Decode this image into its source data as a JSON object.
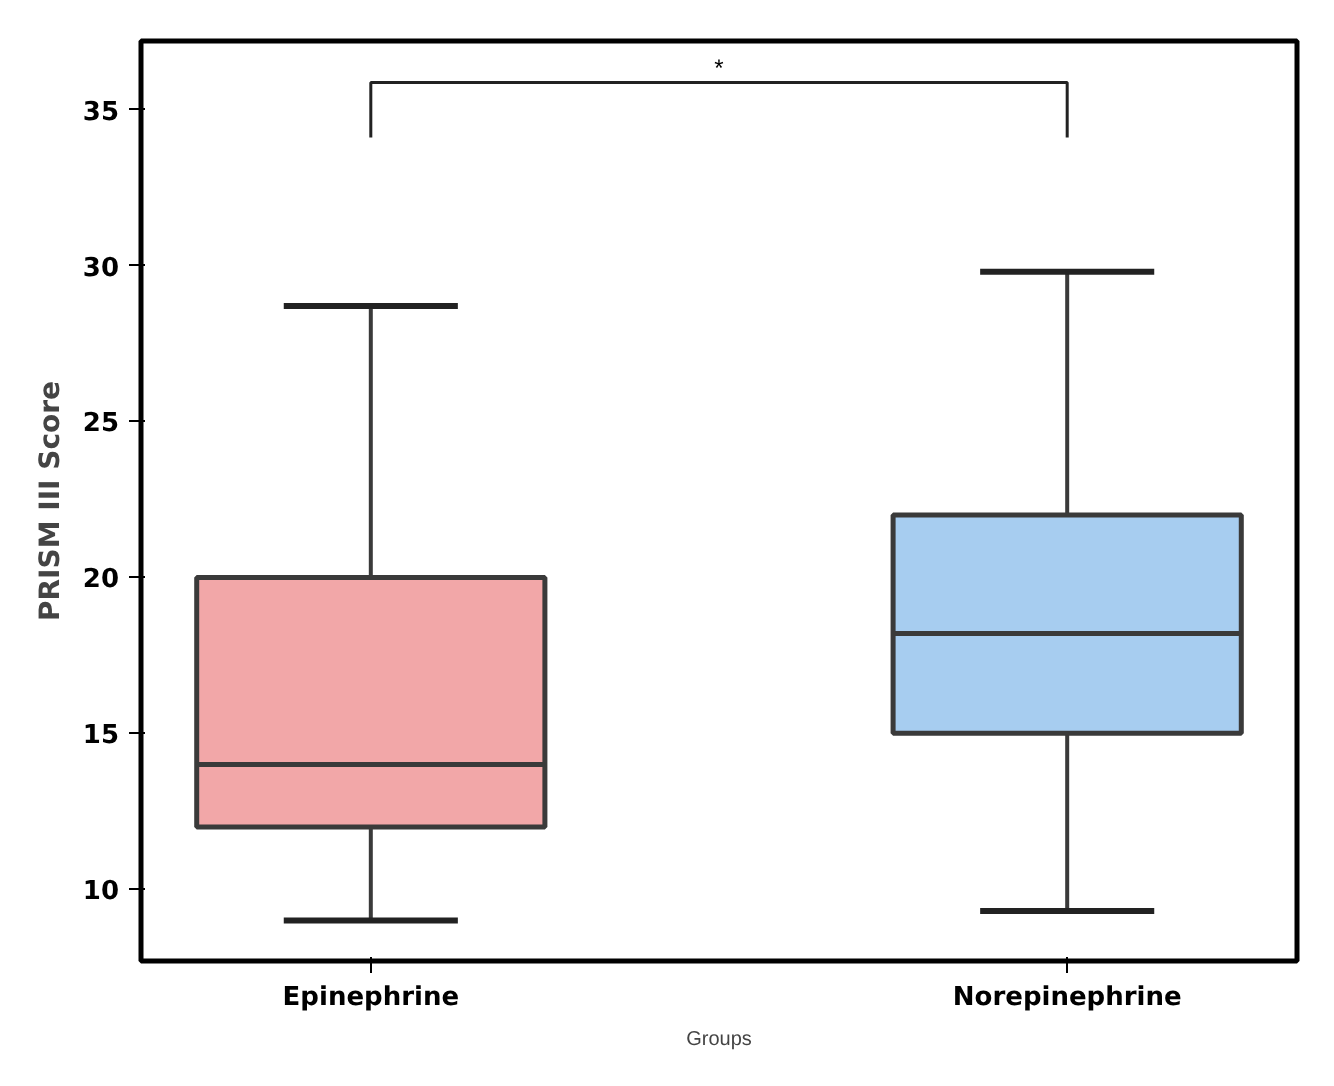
{
  "chart_data": {
    "type": "box",
    "xlabel": "Groups",
    "ylabel": "PRISM III Score",
    "categories": [
      "Epinephrine",
      "Norepinephrine"
    ],
    "colors": [
      "#f2a7a8",
      "#a7cdf0"
    ],
    "boxes": [
      {
        "low": 9.0,
        "q1": 12.0,
        "median": 14.0,
        "q3": 20.0,
        "high": 28.7
      },
      {
        "low": 9.3,
        "q1": 15.0,
        "median": 18.2,
        "q3": 22.0,
        "high": 29.8
      }
    ],
    "ylim": [
      7.7,
      37.2
    ],
    "yticks": [
      10,
      15,
      20,
      25,
      30,
      35
    ],
    "grid": false,
    "annotations": [
      "*"
    ]
  }
}
